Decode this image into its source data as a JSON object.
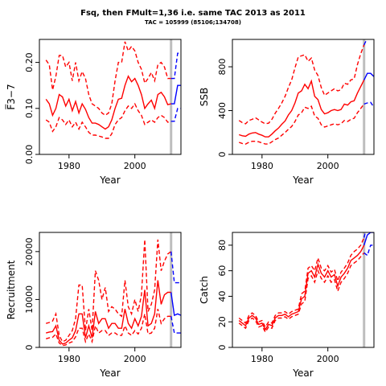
{
  "title": "Fsq, then FMult=1,36 i.e. same TAC 2013 as 2011",
  "subtitle": "TAC = 105999 (85106;134708)",
  "colors": {
    "historic": "#ff0000",
    "projection": "#0000ff",
    "marker": "#bebebe"
  },
  "chart_data": [
    {
      "type": "line",
      "ylabel": "F̅3−7",
      "xlabel": "Year",
      "xlim": [
        1971,
        2014
      ],
      "ylim": [
        0,
        0.25
      ],
      "xticks": [
        1980,
        2000
      ],
      "yticks": [
        0.0,
        0.1,
        0.2
      ],
      "yticklabels": [
        "0.00",
        "0.10",
        "0.20"
      ],
      "marker_year": 2011,
      "historic": {
        "x": [
          1973,
          1974,
          1975,
          1976,
          1977,
          1978,
          1979,
          1980,
          1981,
          1982,
          1983,
          1984,
          1985,
          1986,
          1987,
          1988,
          1989,
          1990,
          1991,
          1992,
          1993,
          1994,
          1995,
          1996,
          1997,
          1998,
          1999,
          2000,
          2001,
          2002,
          2003,
          2004,
          2005,
          2006,
          2007,
          2008,
          2009,
          2010,
          2011
        ],
        "mid": [
          0.12,
          0.11,
          0.085,
          0.1,
          0.13,
          0.125,
          0.105,
          0.12,
          0.095,
          0.115,
          0.09,
          0.11,
          0.098,
          0.08,
          0.068,
          0.068,
          0.065,
          0.06,
          0.055,
          0.06,
          0.075,
          0.1,
          0.12,
          0.122,
          0.15,
          0.17,
          0.158,
          0.165,
          0.15,
          0.13,
          0.1,
          0.11,
          0.118,
          0.1,
          0.13,
          0.135,
          0.125,
          0.108,
          0.11
        ],
        "upper": [
          0.205,
          0.195,
          0.14,
          0.17,
          0.215,
          0.215,
          0.19,
          0.2,
          0.16,
          0.2,
          0.16,
          0.18,
          0.165,
          0.13,
          0.11,
          0.105,
          0.1,
          0.09,
          0.085,
          0.09,
          0.11,
          0.16,
          0.2,
          0.2,
          0.245,
          0.225,
          0.235,
          0.225,
          0.2,
          0.185,
          0.155,
          0.165,
          0.178,
          0.16,
          0.195,
          0.2,
          0.19,
          0.165,
          0.165
        ],
        "lower": [
          0.075,
          0.07,
          0.05,
          0.06,
          0.08,
          0.075,
          0.065,
          0.075,
          0.06,
          0.07,
          0.055,
          0.07,
          0.06,
          0.048,
          0.042,
          0.042,
          0.04,
          0.038,
          0.035,
          0.035,
          0.045,
          0.065,
          0.075,
          0.08,
          0.095,
          0.105,
          0.1,
          0.11,
          0.095,
          0.085,
          0.065,
          0.07,
          0.075,
          0.07,
          0.08,
          0.085,
          0.08,
          0.07,
          0.072
        ]
      },
      "projection": {
        "x": [
          2011,
          2012,
          2013,
          2014
        ],
        "mid": [
          0.11,
          0.11,
          0.15,
          0.15
        ],
        "upper": [
          0.165,
          0.165,
          0.22,
          0.22
        ],
        "lower": [
          0.072,
          0.072,
          0.1,
          0.1
        ]
      }
    },
    {
      "type": "line",
      "ylabel": "SSB",
      "xlabel": "Year",
      "xlim": [
        1971,
        2014
      ],
      "ylim": [
        0,
        1050
      ],
      "xticks": [
        1980,
        2000
      ],
      "yticks": [
        0,
        400,
        800
      ],
      "yticklabels": [
        "0",
        "400",
        "800"
      ],
      "marker_year": 2011,
      "historic": {
        "x": [
          1973,
          1974,
          1975,
          1976,
          1977,
          1978,
          1979,
          1980,
          1981,
          1982,
          1983,
          1984,
          1985,
          1986,
          1987,
          1988,
          1989,
          1990,
          1991,
          1992,
          1993,
          1994,
          1995,
          1996,
          1997,
          1998,
          1999,
          2000,
          2001,
          2002,
          2003,
          2004,
          2005,
          2006,
          2007,
          2008,
          2009,
          2010,
          2011
        ],
        "mid": [
          180,
          170,
          165,
          185,
          195,
          200,
          185,
          175,
          160,
          160,
          185,
          215,
          240,
          275,
          305,
          360,
          400,
          470,
          560,
          580,
          640,
          600,
          670,
          530,
          500,
          410,
          370,
          380,
          400,
          410,
          400,
          410,
          460,
          450,
          480,
          490,
          560,
          620,
          680
        ],
        "upper": [
          310,
          290,
          280,
          310,
          320,
          335,
          315,
          295,
          280,
          285,
          320,
          375,
          420,
          470,
          530,
          610,
          680,
          790,
          890,
          900,
          910,
          850,
          880,
          770,
          720,
          610,
          540,
          560,
          580,
          600,
          580,
          590,
          650,
          640,
          680,
          690,
          820,
          920,
          1000
        ],
        "lower": [
          110,
          100,
          95,
          110,
          120,
          120,
          115,
          105,
          95,
          95,
          115,
          135,
          150,
          175,
          200,
          230,
          255,
          300,
          360,
          380,
          430,
          420,
          440,
          350,
          330,
          270,
          250,
          260,
          270,
          280,
          270,
          280,
          310,
          300,
          320,
          330,
          380,
          420,
          460
        ]
      },
      "projection": {
        "x": [
          2011,
          2012,
          2013,
          2014
        ],
        "mid": [
          680,
          740,
          740,
          710
        ],
        "upper": [
          1000,
          1060,
          1080,
          1090
        ],
        "lower": [
          460,
          470,
          475,
          430
        ]
      }
    },
    {
      "type": "line",
      "ylabel": "Recruitment",
      "xlabel": "Year",
      "xlim": [
        1971,
        2014
      ],
      "ylim": [
        0,
        24000
      ],
      "xticks": [
        1980,
        2000
      ],
      "yticks": [
        0,
        10000,
        20000
      ],
      "yticklabels": [
        "0",
        "10000",
        "20000"
      ],
      "marker_year": 2011,
      "historic": {
        "x": [
          1973,
          1974,
          1975,
          1976,
          1977,
          1978,
          1979,
          1980,
          1981,
          1982,
          1983,
          1984,
          1985,
          1986,
          1987,
          1988,
          1989,
          1990,
          1991,
          1992,
          1993,
          1994,
          1995,
          1996,
          1997,
          1998,
          1999,
          2000,
          2001,
          2002,
          2003,
          2004,
          2005,
          2006,
          2007,
          2008,
          2009,
          2010,
          2011
        ],
        "mid": [
          3000,
          3200,
          3300,
          4500,
          1500,
          700,
          900,
          1500,
          2000,
          3500,
          7000,
          7000,
          2000,
          4500,
          2000,
          7500,
          5000,
          6000,
          6000,
          4000,
          5000,
          5000,
          4000,
          4000,
          8000,
          5000,
          4000,
          6000,
          4500,
          6500,
          12000,
          4500,
          5000,
          7000,
          14000,
          9000,
          11000,
          11500,
          11500
        ],
        "upper": [
          5000,
          5200,
          5500,
          7000,
          2500,
          1200,
          1500,
          2500,
          3500,
          6000,
          13000,
          13000,
          3500,
          8000,
          3500,
          16000,
          14000,
          10000,
          12500,
          7500,
          8500,
          8000,
          7000,
          6500,
          14000,
          8500,
          7000,
          10000,
          7500,
          11000,
          22500,
          7500,
          9000,
          12000,
          22500,
          16000,
          18000,
          19500,
          20000
        ],
        "lower": [
          1800,
          2000,
          2100,
          2800,
          900,
          400,
          500,
          900,
          1200,
          2200,
          4000,
          4000,
          1200,
          2800,
          1200,
          4500,
          3000,
          3500,
          3500,
          2500,
          3000,
          3000,
          2500,
          2500,
          4500,
          3000,
          2500,
          3500,
          2800,
          4000,
          7000,
          2800,
          3000,
          4000,
          8000,
          5000,
          6000,
          6500,
          6500
        ]
      },
      "projection": {
        "x": [
          2011,
          2012,
          2013,
          2014
        ],
        "mid": [
          11500,
          6700,
          7000,
          6700
        ],
        "upper": [
          20000,
          13500,
          13500,
          13500
        ],
        "lower": [
          6500,
          3000,
          3000,
          3000
        ]
      }
    },
    {
      "type": "line",
      "ylabel": "Catch",
      "xlabel": "Year",
      "xlim": [
        1971,
        2014
      ],
      "ylim": [
        0,
        90
      ],
      "xticks": [
        1980,
        2000
      ],
      "yticks": [
        0,
        20,
        40,
        60,
        80
      ],
      "yticklabels": [
        "0",
        "20",
        "40",
        "60",
        "80"
      ],
      "marker_year": 2011,
      "historic": {
        "x": [
          1973,
          1974,
          1975,
          1976,
          1977,
          1978,
          1979,
          1980,
          1981,
          1982,
          1983,
          1984,
          1985,
          1986,
          1987,
          1988,
          1989,
          1990,
          1991,
          1992,
          1993,
          1994,
          1995,
          1996,
          1997,
          1998,
          1999,
          2000,
          2001,
          2002,
          2003,
          2004,
          2005,
          2006,
          2007,
          2008,
          2009,
          2010,
          2011
        ],
        "mid": [
          21,
          19,
          17,
          23,
          25,
          23,
          18,
          19,
          14,
          18,
          17,
          23,
          25,
          25,
          26,
          24,
          26,
          27,
          28,
          38,
          40,
          58,
          60,
          55,
          65,
          58,
          55,
          60,
          55,
          57,
          48,
          55,
          58,
          62,
          68,
          70,
          72,
          75,
          80
        ],
        "upper": [
          23,
          21,
          19,
          25,
          27,
          25,
          20,
          21,
          16,
          20,
          19,
          25,
          27,
          27,
          28,
          26,
          28,
          29,
          30,
          42,
          44,
          62,
          64,
          60,
          70,
          62,
          60,
          64,
          59,
          61,
          52,
          59,
          62,
          66,
          72,
          75,
          77,
          80,
          86
        ],
        "lower": [
          19,
          17,
          15,
          21,
          23,
          21,
          16,
          17,
          12,
          16,
          15,
          21,
          23,
          23,
          24,
          22,
          24,
          25,
          26,
          34,
          36,
          54,
          56,
          51,
          60,
          54,
          51,
          56,
          51,
          53,
          44,
          51,
          54,
          58,
          64,
          66,
          68,
          71,
          74
        ]
      },
      "projection": {
        "x": [
          2011,
          2012,
          2013,
          2014
        ],
        "mid": [
          80,
          88,
          90,
          90
        ],
        "upper": [
          86,
          96,
          98,
          98
        ],
        "lower": [
          74,
          72,
          80,
          80
        ]
      }
    }
  ]
}
